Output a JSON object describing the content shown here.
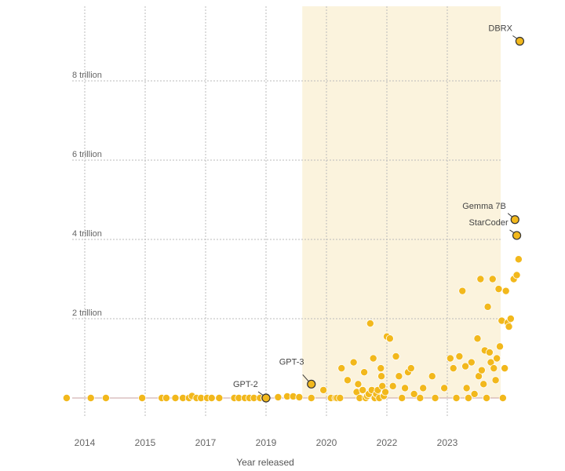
{
  "chart_data": {
    "type": "scatter",
    "xlabel": "Year released",
    "ylabel": "",
    "x_ticks": [
      2014,
      2015,
      2017,
      2019,
      2020,
      2022,
      2023
    ],
    "x_tick_labels": [
      "2014",
      "2015",
      "2017",
      "2019",
      "2020",
      "2022",
      "2023"
    ],
    "y_ticks": [
      2000000000000,
      4000000000000,
      6000000000000,
      8000000000000
    ],
    "y_tick_labels": [
      "2 trillion",
      "4 trillion",
      "6 trillion",
      "8 trillion"
    ],
    "grid": true,
    "highlight_region": {
      "from": "2019.6",
      "to": "end"
    },
    "colors": {
      "point": "#f2b81c",
      "point_outline_highlighted": "#333333",
      "highlight_band": "#fbf3dd",
      "grid": "#bbbbbb",
      "baseline": "#c9a0a0"
    },
    "series": [
      {
        "points": [
          [
            2013.7,
            0.0
          ],
          [
            2014.1,
            0.0
          ],
          [
            2014.35,
            0.0
          ],
          [
            2014.95,
            0.0
          ],
          [
            2015.55,
            0.0
          ],
          [
            2015.7,
            0.0
          ],
          [
            2016.0,
            0.0
          ],
          [
            2016.25,
            0.0
          ],
          [
            2016.45,
            0.0
          ],
          [
            2016.55,
            0.05
          ],
          [
            2016.7,
            0.0
          ],
          [
            2016.85,
            0.0
          ],
          [
            2017.05,
            0.0
          ],
          [
            2017.2,
            0.0
          ],
          [
            2017.45,
            0.0
          ],
          [
            2017.95,
            0.0
          ],
          [
            2018.1,
            0.0
          ],
          [
            2018.3,
            0.0
          ],
          [
            2018.45,
            0.0
          ],
          [
            2018.6,
            0.0
          ],
          [
            2018.8,
            0.0
          ],
          [
            2018.95,
            0.0
          ],
          [
            2019.2,
            0.02
          ],
          [
            2019.35,
            0.04
          ],
          [
            2019.45,
            0.04
          ],
          [
            2019.55,
            0.02
          ],
          [
            2019.75,
            0.0
          ],
          [
            2019.95,
            0.2
          ],
          [
            2020.15,
            0.0
          ],
          [
            2020.3,
            0.0
          ],
          [
            2020.35,
            0.0
          ],
          [
            2020.45,
            0.0
          ],
          [
            2020.5,
            0.75
          ],
          [
            2020.7,
            0.45
          ],
          [
            2020.9,
            0.9
          ],
          [
            2021.0,
            0.15
          ],
          [
            2021.05,
            0.35
          ],
          [
            2021.1,
            0.0
          ],
          [
            2021.2,
            0.2
          ],
          [
            2021.25,
            0.65
          ],
          [
            2021.3,
            0.0
          ],
          [
            2021.35,
            0.05
          ],
          [
            2021.4,
            0.1
          ],
          [
            2021.45,
            1.88
          ],
          [
            2021.5,
            0.2
          ],
          [
            2021.55,
            1.0
          ],
          [
            2021.6,
            0.0
          ],
          [
            2021.65,
            0.1
          ],
          [
            2021.7,
            0.2
          ],
          [
            2021.75,
            0.0
          ],
          [
            2021.8,
            0.75
          ],
          [
            2021.82,
            0.55
          ],
          [
            2021.85,
            0.3
          ],
          [
            2021.9,
            0.05
          ],
          [
            2021.95,
            0.15
          ],
          [
            2022.0,
            1.55
          ],
          [
            2022.05,
            1.5
          ],
          [
            2022.1,
            0.3
          ],
          [
            2022.15,
            1.05
          ],
          [
            2022.2,
            0.55
          ],
          [
            2022.25,
            0.0
          ],
          [
            2022.3,
            0.25
          ],
          [
            2022.35,
            0.65
          ],
          [
            2022.4,
            0.75
          ],
          [
            2022.45,
            0.1
          ],
          [
            2022.55,
            0.0
          ],
          [
            2022.6,
            0.25
          ],
          [
            2022.75,
            0.55
          ],
          [
            2022.8,
            0.0
          ],
          [
            2022.95,
            0.25
          ],
          [
            2023.05,
            1.0
          ],
          [
            2023.1,
            0.75
          ],
          [
            2023.15,
            0.0
          ],
          [
            2023.2,
            1.05
          ],
          [
            2023.25,
            2.7
          ],
          [
            2023.3,
            0.8
          ],
          [
            2023.32,
            0.25
          ],
          [
            2023.35,
            0.0
          ],
          [
            2023.4,
            0.9
          ],
          [
            2023.45,
            0.1
          ],
          [
            2023.5,
            1.5
          ],
          [
            2023.52,
            0.55
          ],
          [
            2023.55,
            3.0
          ],
          [
            2023.57,
            0.7
          ],
          [
            2023.6,
            0.35
          ],
          [
            2023.62,
            1.2
          ],
          [
            2023.65,
            0.0
          ],
          [
            2023.67,
            2.3
          ],
          [
            2023.7,
            1.15
          ],
          [
            2023.72,
            0.9
          ],
          [
            2023.75,
            3.0
          ],
          [
            2023.77,
            0.75
          ],
          [
            2023.8,
            0.45
          ],
          [
            2023.82,
            1.0
          ],
          [
            2023.85,
            2.75
          ],
          [
            2023.87,
            1.3
          ],
          [
            2023.9,
            1.95
          ],
          [
            2023.92,
            0.0
          ],
          [
            2023.95,
            0.75
          ],
          [
            2023.97,
            2.7
          ],
          [
            2024.0,
            1.9
          ],
          [
            2024.02,
            1.8
          ],
          [
            2024.05,
            2.0
          ],
          [
            2024.1,
            3.0
          ],
          [
            2024.15,
            3.1
          ],
          [
            2024.18,
            3.5
          ]
        ]
      }
    ],
    "highlighted": [
      {
        "label": "GPT-2",
        "x": 2019.0,
        "y": 0.0
      },
      {
        "label": "GPT-3",
        "x": 2019.75,
        "y": 0.35
      },
      {
        "label": "StarCoder",
        "x": 2024.15,
        "y": 4.1
      },
      {
        "label": "Gemma 7B",
        "x": 2024.12,
        "y": 4.5
      },
      {
        "label": "DBRX",
        "x": 2024.2,
        "y": 9.0
      }
    ]
  }
}
